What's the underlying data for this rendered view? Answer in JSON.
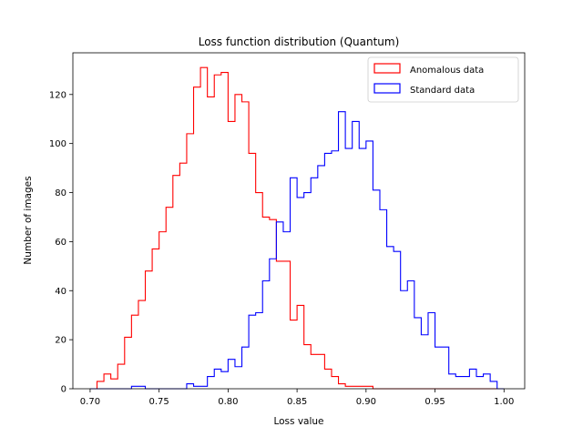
{
  "chart_data": {
    "type": "histogram-step",
    "title": "Loss function distribution (Quantum)",
    "xlabel": "Loss value",
    "ylabel": "Number of images",
    "xlim": [
      0.6875,
      1.015
    ],
    "ylim": [
      0,
      137
    ],
    "xticks": [
      0.7,
      0.75,
      0.8,
      0.85,
      0.9,
      0.95,
      1.0
    ],
    "xtick_labels": [
      "0.70",
      "0.75",
      "0.80",
      "0.85",
      "0.90",
      "0.95",
      "1.00"
    ],
    "yticks": [
      0,
      20,
      40,
      60,
      80,
      100,
      120
    ],
    "ytick_labels": [
      "0",
      "20",
      "40",
      "60",
      "80",
      "100",
      "120"
    ],
    "bin_range": [
      0.7,
      1.0
    ],
    "bin_count": 60,
    "legend": {
      "placement": "top-right"
    },
    "series": [
      {
        "name": "Anomalous data",
        "color": "#ff0000",
        "counts": [
          0,
          3,
          6,
          4,
          10,
          21,
          30,
          36,
          48,
          57,
          64,
          74,
          87,
          92,
          104,
          123,
          131,
          119,
          128,
          129,
          109,
          120,
          117,
          96,
          80,
          70,
          69,
          52,
          52,
          28,
          34,
          18,
          14,
          14,
          8,
          5,
          2,
          1,
          1,
          1,
          1,
          0,
          0,
          0,
          0,
          0,
          0,
          0,
          0,
          0,
          0,
          0,
          0,
          0,
          0,
          0,
          0,
          0,
          0,
          0
        ]
      },
      {
        "name": "Standard data",
        "color": "#0000ff",
        "counts": [
          0,
          0,
          0,
          0,
          0,
          0,
          1,
          1,
          0,
          0,
          0,
          0,
          0,
          0,
          2,
          1,
          1,
          5,
          8,
          7,
          12,
          9,
          17,
          30,
          31,
          44,
          53,
          68,
          64,
          86,
          78,
          80,
          86,
          91,
          96,
          97,
          113,
          98,
          109,
          98,
          101,
          81,
          73,
          58,
          56,
          40,
          44,
          29,
          22,
          31,
          17,
          17,
          6,
          5,
          5,
          8,
          5,
          6,
          3,
          0
        ]
      }
    ]
  }
}
